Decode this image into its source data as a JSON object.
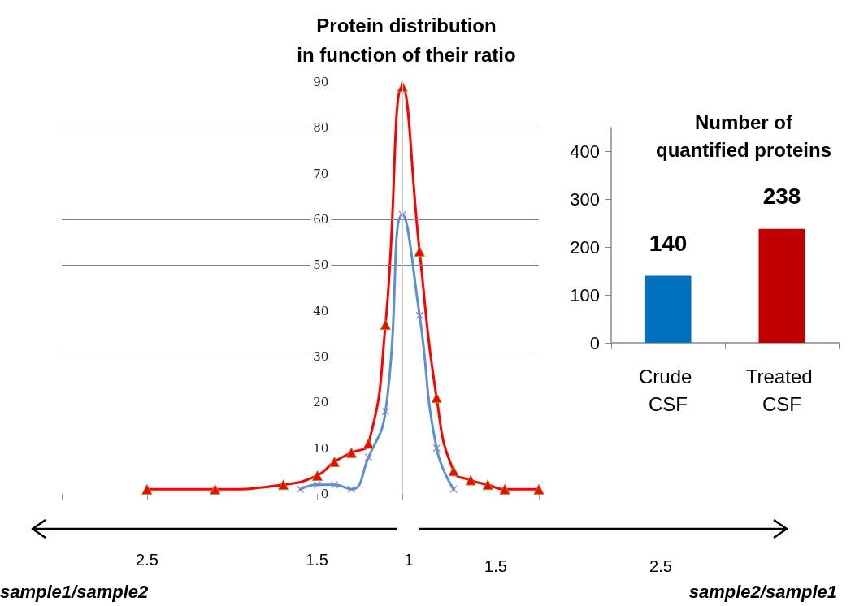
{
  "chart_data": [
    {
      "type": "line",
      "title": "Protein distribution\nin function of their ratio",
      "categories": [
        null,
        null,
        null,
        null,
        null,
        null,
        null,
        null,
        null,
        null,
        null,
        null,
        null,
        null,
        null,
        null,
        null,
        null,
        null,
        null,
        null,
        null,
        null,
        null,
        null,
        null,
        null,
        null,
        null
      ],
      "series": [
        {
          "color": "#ff0000",
          "marker": "triangle",
          "values": [
            null,
            null,
            null,
            null,
            null,
            1,
            null,
            null,
            null,
            1,
            null,
            null,
            null,
            2,
            null,
            4,
            7,
            9,
            11,
            37,
            89,
            53,
            21,
            5,
            3,
            2,
            1,
            null,
            1
          ]
        },
        {
          "color": "#5b8fd6",
          "marker": "cross",
          "values": [
            null,
            null,
            null,
            null,
            null,
            null,
            null,
            null,
            null,
            null,
            null,
            null,
            null,
            null,
            1,
            2,
            2,
            1,
            8,
            18,
            61,
            39,
            10,
            1,
            null,
            null,
            null,
            null,
            null
          ]
        }
      ],
      "ylim": [
        0,
        90
      ],
      "yticks": [
        0,
        10,
        20,
        30,
        40,
        50,
        60,
        70,
        80,
        90
      ],
      "grid": false,
      "line_style": "solid",
      "tick_labels": "y",
      "ref_lines": [
        {
          "axis": "y",
          "value": 30,
          "color": "#808080"
        },
        {
          "axis": "y",
          "value": 50,
          "color": "#808080"
        },
        {
          "axis": "y",
          "value": 60,
          "color": "#808080"
        },
        {
          "axis": "y",
          "value": 80,
          "color": "#808080"
        }
      ],
      "annotations": [
        "2.5",
        "1.5",
        "1",
        "1.5",
        "2.5",
        "sample1/sample2",
        "sample2/sample1"
      ]
    },
    {
      "type": "bar",
      "title": "Number of\nquantified proteins",
      "categories": [
        "Crude CSF",
        "Treated CSF"
      ],
      "values": [
        140,
        238
      ],
      "colors": [
        "#0070c0",
        "#c00000"
      ],
      "ylim": [
        0,
        450
      ],
      "yticks": [
        0,
        100,
        200,
        300,
        400
      ],
      "grid": false,
      "data_labels": true
    }
  ]
}
